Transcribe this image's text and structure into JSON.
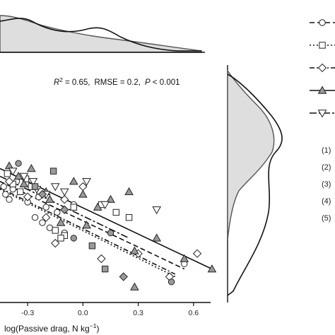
{
  "chart_data": {
    "type": "scatter",
    "xlabel_main": "log(Passive drag, N kg",
    "xlabel_sup": "−1",
    "xlabel_close": ")",
    "xticks": [
      -0.3,
      0.0,
      0.3,
      0.6
    ],
    "xtick_labels": [
      "-0.3",
      "0.0",
      "0.3",
      "0.6"
    ],
    "xlim": [
      -0.45,
      0.8
    ],
    "ylim": [
      -0.35,
      0.55
    ],
    "annotation": {
      "r2_label": "R",
      "r2_sup": "2",
      "r2_value": " = 0.65,",
      "rmse": "RMSE = 0.2,",
      "p_label": "P",
      "p_value": " < 0.001"
    },
    "grid": false,
    "legend_position": "right",
    "series": [
      {
        "name": "(1)",
        "marker": "circle",
        "fill": "#ffffff",
        "line": "dash",
        "points": [
          [
            -0.42,
            0.07
          ],
          [
            -0.4,
            0.05
          ],
          [
            -0.38,
            0.09
          ],
          [
            -0.43,
            0.1
          ],
          [
            -0.36,
            0.12
          ],
          [
            -0.3,
            0.04
          ],
          [
            -0.24,
            0.06
          ],
          [
            -0.2,
            0.02
          ],
          [
            -0.22,
            -0.04
          ],
          [
            -0.18,
            -0.06
          ],
          [
            -0.26,
            -0.02
          ],
          [
            -0.14,
            0.0
          ],
          [
            -0.05,
            0.03
          ],
          [
            -0.1,
            -0.08
          ],
          [
            0.55,
            -0.2
          ]
        ],
        "fit": [
          [
            -0.45,
            0.12
          ],
          [
            0.55,
            -0.22
          ]
        ]
      },
      {
        "name": "(2)",
        "marker": "square",
        "fill": "#ffffff",
        "line": "dot",
        "points": [
          [
            -0.41,
            0.15
          ],
          [
            -0.38,
            0.11
          ],
          [
            -0.34,
            0.08
          ],
          [
            -0.31,
            0.13
          ],
          [
            -0.28,
            0.1
          ],
          [
            -0.15,
            -0.07
          ],
          [
            -0.1,
            -0.09
          ],
          [
            -0.05,
            0.02
          ],
          [
            0.1,
            0.03
          ],
          [
            0.18,
            0.0
          ],
          [
            0.25,
            -0.02
          ],
          [
            -0.12,
            -0.1
          ]
        ],
        "fit": [
          [
            -0.45,
            0.09
          ],
          [
            0.5,
            -0.25
          ]
        ]
      },
      {
        "name": "(3)",
        "marker": "diamond",
        "fill": "#ffffff",
        "line": "dashdot",
        "points": [
          [
            -0.4,
            0.12
          ],
          [
            -0.3,
            0.06
          ],
          [
            -0.2,
            -0.02
          ],
          [
            -0.1,
            0.05
          ],
          [
            0.0,
            0.1
          ],
          [
            -0.15,
            -0.12
          ],
          [
            0.3,
            -0.16
          ],
          [
            0.47,
            -0.25
          ],
          [
            0.62,
            -0.16
          ],
          [
            0.1,
            -0.18
          ]
        ],
        "fit": [
          [
            -0.45,
            0.095
          ],
          [
            0.5,
            -0.24
          ]
        ]
      },
      {
        "name": "(4)",
        "marker": "triangle",
        "fill": "#999999",
        "line": "solid",
        "points": [
          [
            -0.4,
            0.18
          ],
          [
            -0.35,
            0.14
          ],
          [
            -0.32,
            0.11
          ],
          [
            -0.28,
            0.17
          ],
          [
            -0.2,
            0.08
          ],
          [
            -0.18,
            0.05
          ],
          [
            -0.05,
            0.12
          ],
          [
            0.0,
            0.07
          ],
          [
            0.02,
            -0.05
          ],
          [
            0.15,
            0.05
          ],
          [
            0.25,
            0.08
          ],
          [
            0.4,
            -0.1
          ],
          [
            0.55,
            -0.18
          ],
          [
            0.7,
            -0.22
          ],
          [
            0.28,
            -0.15
          ]
        ],
        "fit": [
          [
            -0.45,
            0.17
          ],
          [
            0.7,
            -0.22
          ]
        ]
      },
      {
        "name": "(5)",
        "marker": "triangle-down",
        "fill": "#ffffff",
        "line": "dashdash",
        "points": [
          [
            -0.38,
            0.16
          ],
          [
            -0.32,
            0.14
          ],
          [
            -0.27,
            0.12
          ],
          [
            -0.25,
            0.09
          ],
          [
            -0.2,
            0.07
          ],
          [
            -0.15,
            0.1
          ],
          [
            -0.1,
            0.08
          ],
          [
            0.02,
            0.12
          ],
          [
            0.4,
            0.01
          ],
          [
            0.12,
            0.03
          ]
        ],
        "fit": [
          [
            -0.45,
            0.14
          ],
          [
            0.25,
            -0.1
          ]
        ]
      }
    ],
    "extra_gray_points": [
      [
        -0.35,
        0.19
      ],
      [
        -0.26,
        0.1
      ],
      [
        -0.22,
        0.07
      ],
      [
        -0.12,
        -0.04
      ],
      [
        -0.05,
        -0.1
      ],
      [
        0.05,
        -0.13
      ],
      [
        0.22,
        -0.25
      ],
      [
        0.28,
        -0.29
      ],
      [
        0.48,
        -0.27
      ],
      [
        -0.16,
        0.16
      ],
      [
        -0.1,
        0.01
      ],
      [
        0.08,
        0.02
      ],
      [
        0.15,
        -0.08
      ],
      [
        0.12,
        -0.22
      ]
    ],
    "legend_numbers": [
      "(1)",
      "(2)",
      "(3)",
      "(4)",
      "(5)"
    ]
  }
}
